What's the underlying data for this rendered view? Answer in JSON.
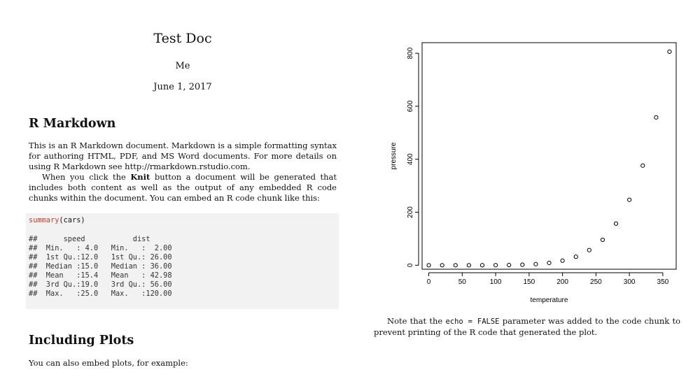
{
  "doc": {
    "title": "Test Doc",
    "author": "Me",
    "date": "June 1, 2017"
  },
  "section1": {
    "heading": "R Markdown",
    "para1": "This is an R Markdown document. Markdown is a simple formatting syntax for authoring HTML, PDF, and MS Word documents. For more details on using R Markdown see http://rmarkdown.rstudio.com.",
    "para2_before": "When you click the ",
    "para2_bold": "Knit",
    "para2_after": " button a document will be generated that includes both content as well as the output of any embedded R code chunks within the document. You can embed an R code chunk like this:"
  },
  "code": {
    "fn": "summary",
    "args": "(cars)",
    "output": [
      "##      speed           dist       ",
      "##  Min.   : 4.0   Min.   :  2.00  ",
      "##  1st Qu.:12.0   1st Qu.: 26.00  ",
      "##  Median :15.0   Median : 36.00  ",
      "##  Mean   :15.4   Mean   : 42.98  ",
      "##  3rd Qu.:19.0   3rd Qu.: 56.00  ",
      "##  Max.   :25.0   Max.   :120.00  "
    ]
  },
  "section2": {
    "heading": "Including Plots",
    "para": "You can also embed plots, for example:"
  },
  "note": {
    "before": "Note that the ",
    "code": "echo = FALSE",
    "after": " parameter was added to the code chunk to prevent printing of the R code that generated the plot."
  },
  "chart_data": {
    "type": "scatter",
    "title": "",
    "xlabel": "temperature",
    "ylabel": "pressure",
    "xlim": [
      -10,
      370
    ],
    "ylim": [
      -15,
      840
    ],
    "xticks": [
      0,
      50,
      100,
      150,
      200,
      250,
      300,
      350
    ],
    "yticks": [
      0,
      200,
      400,
      600,
      800
    ],
    "grid": false,
    "x": [
      0,
      20,
      40,
      60,
      80,
      100,
      120,
      140,
      160,
      180,
      200,
      220,
      240,
      260,
      280,
      300,
      320,
      340,
      360
    ],
    "y": [
      0.0002,
      0.0012,
      0.006,
      0.03,
      0.09,
      0.27,
      0.75,
      1.85,
      4.2,
      8.8,
      17.3,
      32.1,
      57,
      96,
      157,
      247,
      376,
      558,
      806
    ]
  }
}
